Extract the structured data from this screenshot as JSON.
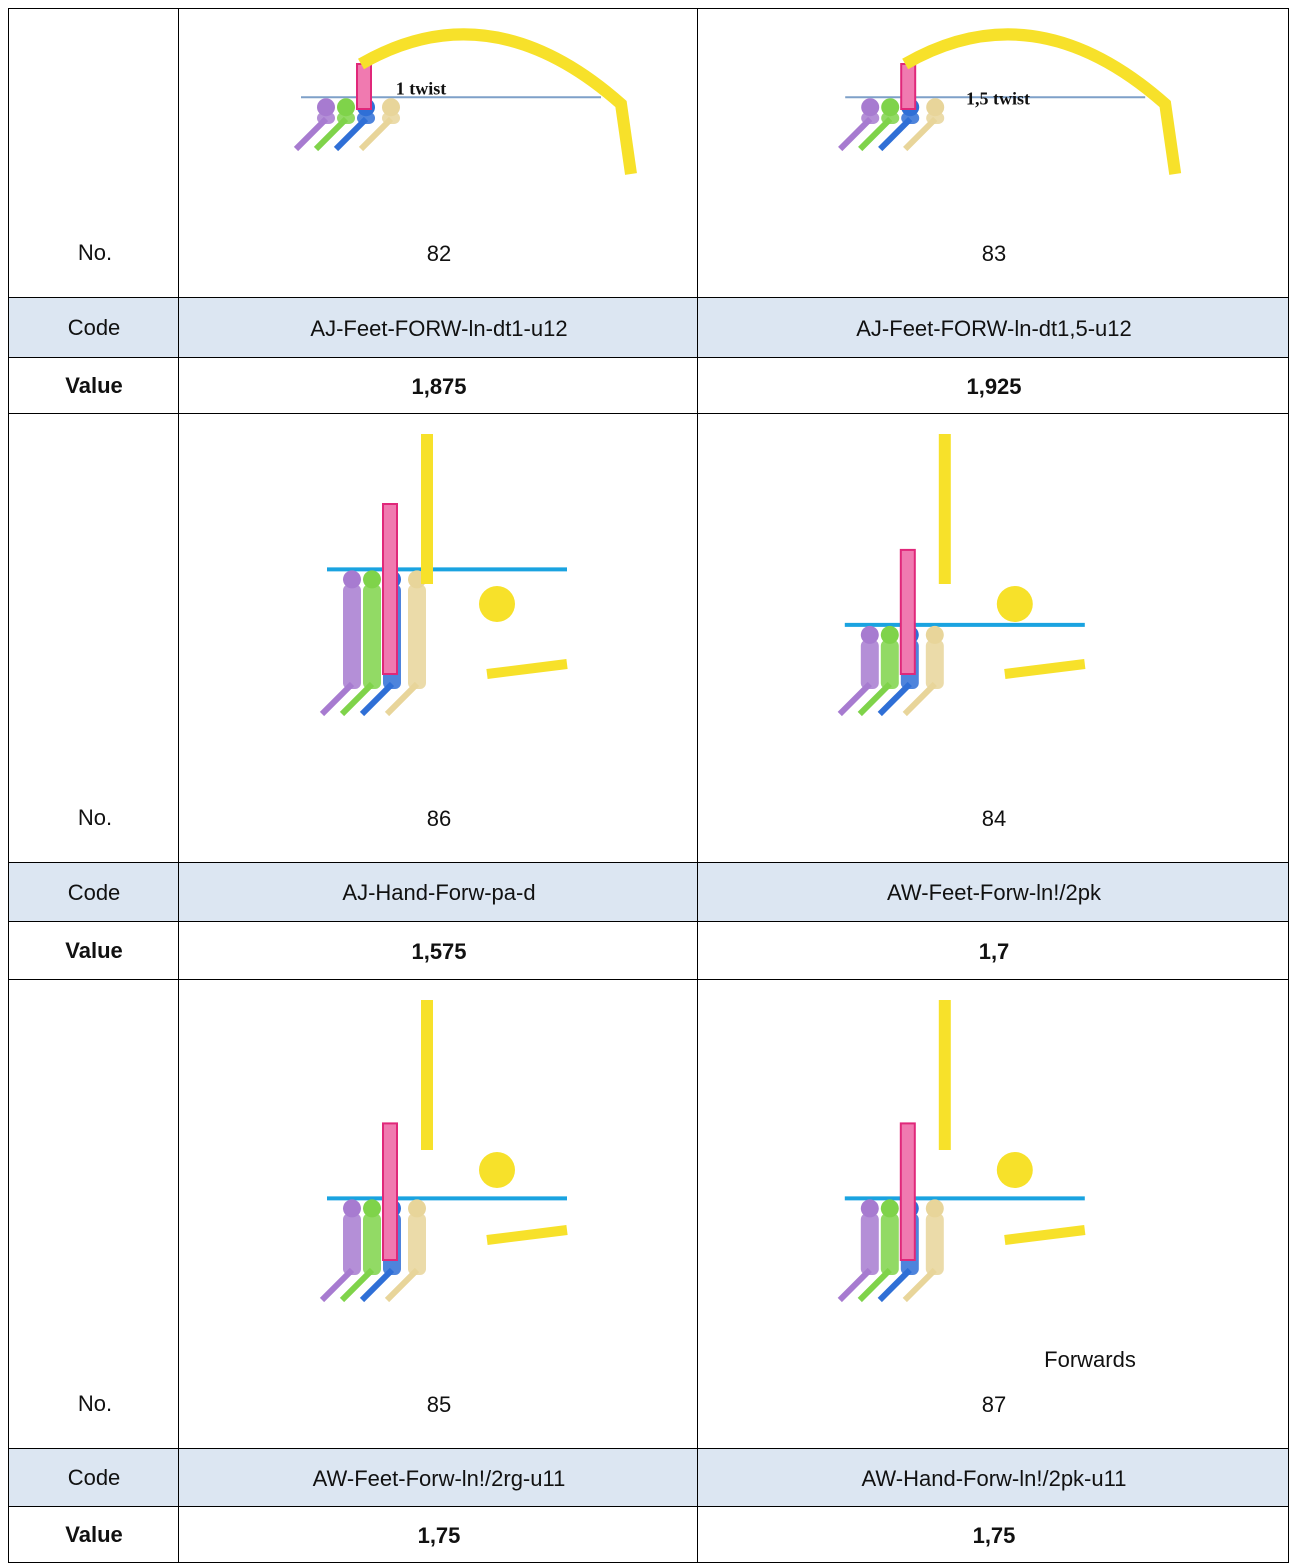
{
  "blocks": [
    {
      "no_label": "No.",
      "code_label": "Code",
      "value_label": "Value",
      "cells": [
        {
          "number": "82",
          "note": "1 twist",
          "code": "AJ-Feet-FORW-ln-dt1-u12",
          "value": "1,875"
        },
        {
          "number": "83",
          "note": "1,5 twist",
          "code": "AJ-Feet-FORW-ln-dt1,5-u12",
          "value": "1,925"
        }
      ]
    },
    {
      "no_label": "No.",
      "code_label": "Code",
      "value_label": "Value",
      "cells": [
        {
          "number": "86",
          "code": "AJ-Hand-Forw-pa-d",
          "value": "1,575"
        },
        {
          "number": "84",
          "code": "AW-Feet-Forw-ln!/2pk",
          "value": "1,7"
        }
      ]
    },
    {
      "no_label": "No.",
      "code_label": "Code",
      "value_label": "Value",
      "cells": [
        {
          "number": "85",
          "code": "AW-Feet-Forw-ln!/2rg-u11",
          "value": "1,75"
        },
        {
          "number": "87",
          "note": "Forwards",
          "code": "AW-Hand-Forw-ln!/2pk-u11",
          "value": "1,75"
        }
      ]
    }
  ]
}
